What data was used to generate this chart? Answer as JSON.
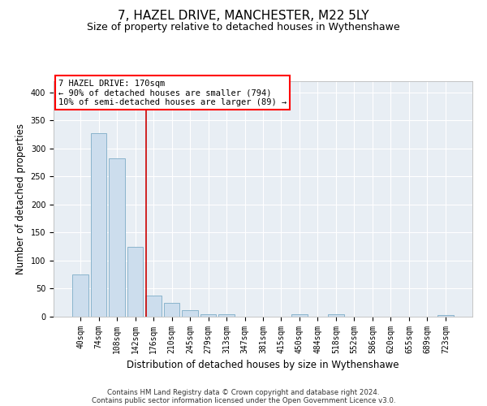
{
  "title": "7, HAZEL DRIVE, MANCHESTER, M22 5LY",
  "subtitle": "Size of property relative to detached houses in Wythenshawe",
  "xlabel": "Distribution of detached houses by size in Wythenshawe",
  "ylabel": "Number of detached properties",
  "footer1": "Contains HM Land Registry data © Crown copyright and database right 2024.",
  "footer2": "Contains public sector information licensed under the Open Government Licence v3.0.",
  "bar_labels": [
    "40sqm",
    "74sqm",
    "108sqm",
    "142sqm",
    "176sqm",
    "210sqm",
    "245sqm",
    "279sqm",
    "313sqm",
    "347sqm",
    "381sqm",
    "415sqm",
    "450sqm",
    "484sqm",
    "518sqm",
    "552sqm",
    "586sqm",
    "620sqm",
    "655sqm",
    "689sqm",
    "723sqm"
  ],
  "bar_values": [
    75,
    328,
    283,
    124,
    38,
    25,
    12,
    5,
    4,
    0,
    0,
    0,
    5,
    0,
    4,
    0,
    0,
    0,
    0,
    0,
    3
  ],
  "bar_color": "#ccdded",
  "bar_edgecolor": "#8ab4cc",
  "ylim": [
    0,
    420
  ],
  "yticks": [
    0,
    50,
    100,
    150,
    200,
    250,
    300,
    350,
    400
  ],
  "vline_color": "#cc0000",
  "vline_pos": 3.58,
  "annotation_line1": "7 HAZEL DRIVE: 170sqm",
  "annotation_line2": "← 90% of detached houses are smaller (794)",
  "annotation_line3": "10% of semi-detached houses are larger (89) →",
  "bg_color": "#e8eef4",
  "grid_color": "#ffffff",
  "title_fontsize": 11,
  "subtitle_fontsize": 9,
  "tick_fontsize": 7,
  "label_fontsize": 8.5
}
